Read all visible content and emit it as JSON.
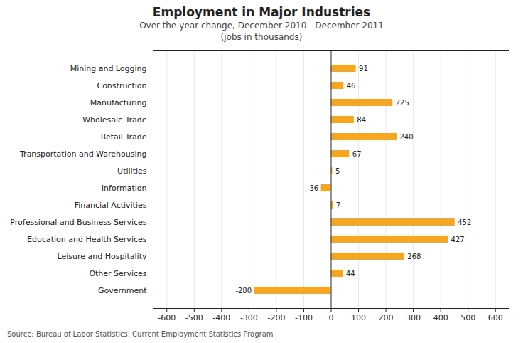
{
  "chart_data": {
    "type": "bar",
    "orientation": "horizontal",
    "title": "Employment in Major Industries",
    "subtitle": [
      "Over-the-year change, December 2010 - December 2011",
      "(jobs in thousands)"
    ],
    "source": "Source: Bureau of Labor Statistics, Current Employment Statistics Program",
    "categories": [
      "Government",
      "Other Services",
      "Leisure and Hospitality",
      "Education and Health Services",
      "Professional and Business Services",
      "Financial Activities",
      "Information",
      "Utilities",
      "Transportation and Warehousing",
      "Retail Trade",
      "Wholesale Trade",
      "Manufacturing",
      "Construction",
      "Mining and Logging"
    ],
    "values": [
      -280,
      44,
      268,
      427,
      452,
      7,
      -36,
      5,
      67,
      240,
      84,
      225,
      46,
      91
    ],
    "color": "#F5A623",
    "xlim": [
      -650,
      650
    ],
    "xticks": [
      -600,
      -500,
      -400,
      -300,
      -200,
      -100,
      0,
      100,
      200,
      300,
      400,
      500,
      600
    ],
    "grid": true,
    "data_labels": true
  }
}
